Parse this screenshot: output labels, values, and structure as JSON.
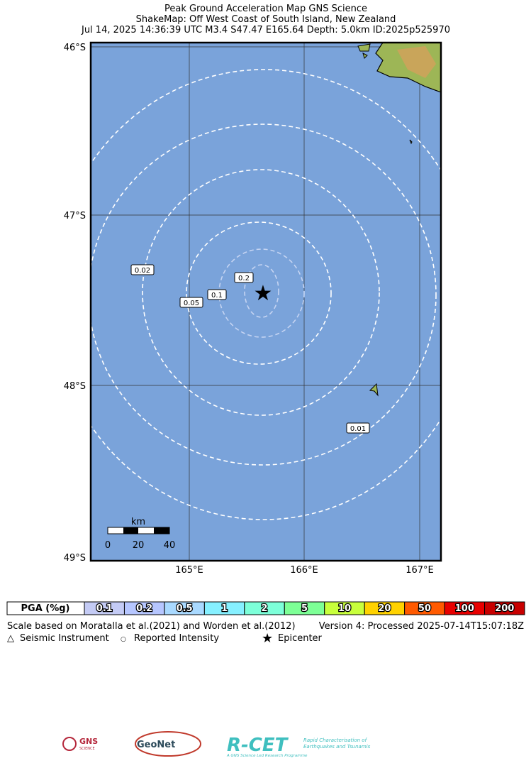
{
  "header": {
    "lines": [
      "Peak Ground Acceleration Map GNS Science",
      "ShakeMap: Off West Coast of South Island, New Zealand",
      "Jul 14, 2025 14:36:39 UTC M3.4 S47.47 E165.64 Depth: 5.0km ID:2025p525970"
    ]
  },
  "map": {
    "lat_labels": [
      "46°S",
      "47°S",
      "48°S",
      "49°S"
    ],
    "lon_labels": [
      "165°E",
      "166°E",
      "167°E"
    ],
    "contour_labels": [
      "0.02",
      "0.2",
      "0.1",
      "0.05",
      "0.01"
    ],
    "scale_bar": {
      "unit": "km",
      "ticks": [
        "0",
        "20",
        "40"
      ]
    }
  },
  "pga_scale": {
    "title": "PGA (%g)",
    "bins": [
      "0.1",
      "0.2",
      "0.5",
      "1",
      "2",
      "5",
      "10",
      "20",
      "50",
      "100",
      "200"
    ],
    "colors": [
      "#c4cbf5",
      "#b6c6ff",
      "#a9d9ff",
      "#86f0ff",
      "#7dffd9",
      "#7dff96",
      "#c8ff3c",
      "#ffd200",
      "#ff5a00",
      "#e80000",
      "#c80000"
    ]
  },
  "footer": {
    "note": "Scale based on Moratalla et al.(2021) and Worden et al.(2012)",
    "version": "Version 4: Processed 2025-07-14T15:07:18Z",
    "legend": [
      "Seismic Instrument",
      "Reported Intensity",
      "Epicenter"
    ]
  },
  "logos": {
    "gns": "GNS",
    "gns_sub": "SCIENCE",
    "geonet": "GeoNet",
    "rcet": "R-CET",
    "rcet_tag": "Rapid Characterisation of",
    "rcet_tag2": "Earthquakes and Tsunamis",
    "rcet_foot": "A GNS Science Led Research Programme"
  }
}
